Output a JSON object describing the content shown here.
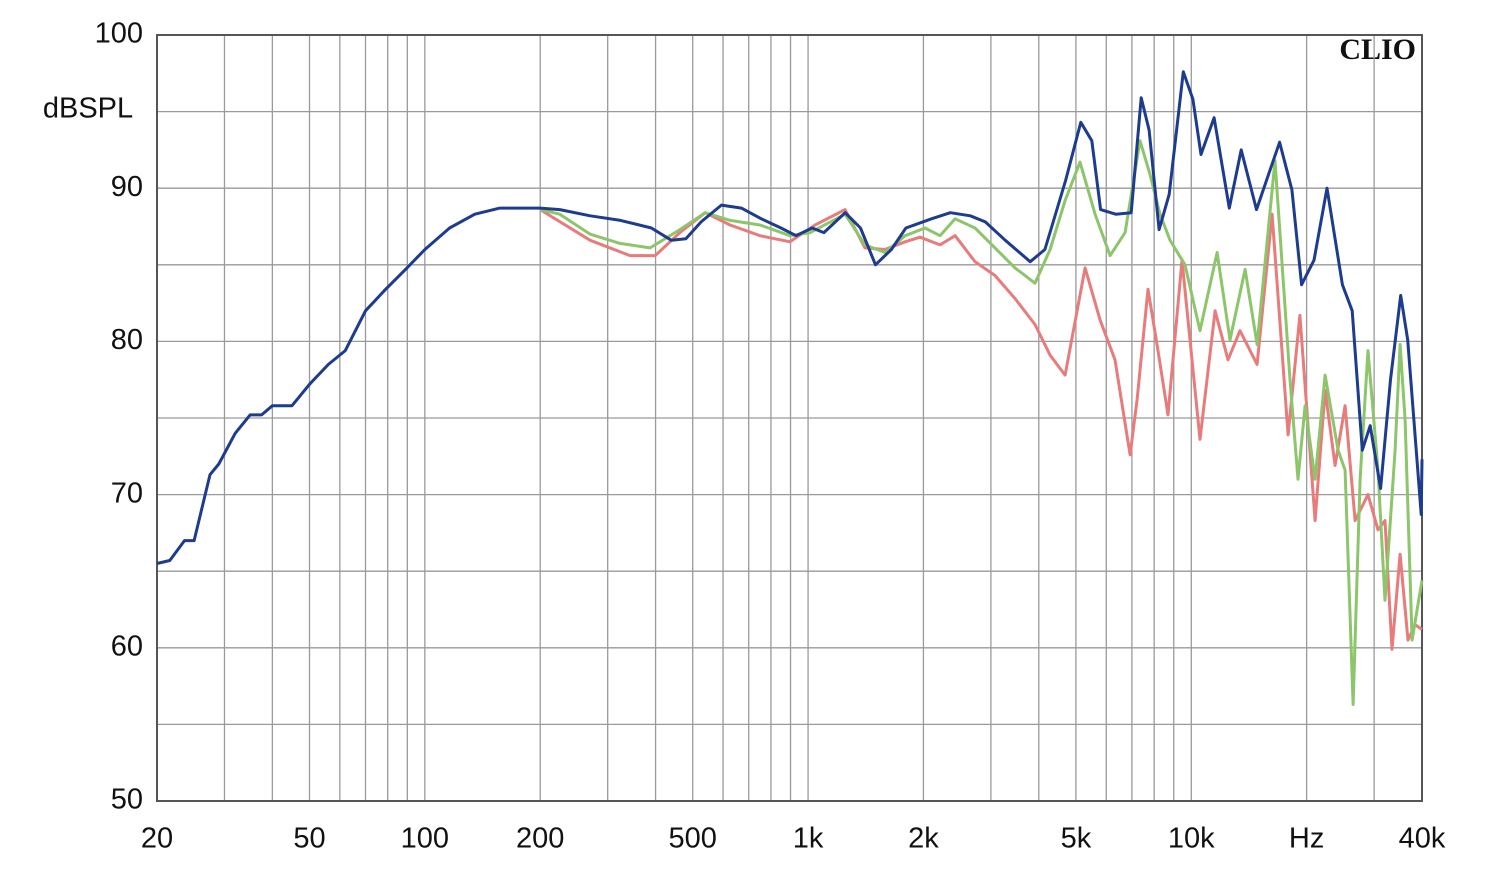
{
  "chart_data": {
    "type": "line",
    "y_label": "dBSPL",
    "annotation": "CLIO",
    "log_x": true,
    "grid": true,
    "xlim": [
      20,
      40000
    ],
    "ylim": [
      50,
      100
    ],
    "xticks": [
      20,
      50,
      100,
      200,
      500,
      {
        "value": 1000,
        "label": "1k"
      },
      {
        "value": 2000,
        "label": "2k"
      },
      {
        "value": 5000,
        "label": "5k"
      },
      {
        "value": 10000,
        "label": "10k"
      },
      {
        "value": 20000,
        "label": "Hz"
      },
      {
        "value": 40000,
        "label": "40k"
      }
    ],
    "xminorticks": [
      30,
      40,
      60,
      70,
      80,
      90,
      300,
      400,
      600,
      700,
      800,
      900,
      3000,
      4000,
      6000,
      7000,
      8000,
      9000,
      30000
    ],
    "yticks": [
      50,
      60,
      70,
      80,
      90,
      100
    ],
    "yminorticks": [
      55,
      65,
      75,
      85,
      95
    ],
    "series": [
      {
        "color": "#e87b7b",
        "x": [
          200,
          270,
          343,
          399,
          463,
          539,
          626,
          749,
          897,
          1043,
          1249,
          1408,
          1588,
          1791,
          1959,
          2210,
          2419,
          2727,
          3075,
          3468,
          3911,
          4281,
          4684,
          5282,
          5781,
          6325,
          6923,
          7220,
          7711,
          8187,
          8692,
          9459,
          10540,
          11540,
          12470,
          13400,
          14850,
          16250,
          17890,
          19210,
          21040,
          22340,
          23730,
          25200,
          26760,
          28920,
          30710,
          32030,
          33410,
          35060,
          36780,
          38370,
          40000
        ],
        "values": [
          88.6,
          86.6,
          85.6,
          85.6,
          87.1,
          88.4,
          87.6,
          86.9,
          86.5,
          87.6,
          88.6,
          86.1,
          86,
          86.5,
          86.8,
          86.3,
          86.9,
          85.2,
          84.3,
          82.8,
          81.1,
          79.1,
          77.8,
          84.8,
          81.4,
          78.8,
          72.6,
          76.2,
          83.4,
          79.4,
          75.2,
          85.3,
          73.6,
          82,
          78.8,
          80.7,
          78.5,
          88.3,
          73.9,
          81.7,
          68.3,
          76.8,
          71.9,
          75.8,
          68.3,
          70,
          67.7,
          68.3,
          59.9,
          66.1,
          60.5,
          61.5,
          61.2
        ]
      },
      {
        "color": "#8dc56b",
        "x": [
          200,
          225,
          270,
          323,
          387,
          463,
          539,
          626,
          749,
          897,
          1012,
          1249,
          1408,
          1588,
          1791,
          2019,
          2210,
          2419,
          2727,
          3075,
          3468,
          3911,
          4281,
          4684,
          5125,
          5609,
          6138,
          6718,
          7350,
          7803,
          8286,
          8804,
          9630,
          10540,
          11680,
          12620,
          13820,
          14850,
          16540,
          18100,
          18990,
          19810,
          21040,
          22340,
          24160,
          25200,
          26440,
          27570,
          28920,
          30710,
          32030,
          34020,
          35060,
          36130,
          37680,
          40000
        ],
        "values": [
          88.6,
          88.3,
          87,
          86.4,
          86.1,
          87.3,
          88.4,
          87.9,
          87.6,
          86.9,
          87.1,
          88.3,
          86.3,
          85.8,
          86.9,
          87.4,
          86.9,
          88,
          87.4,
          86.1,
          84.8,
          83.8,
          86,
          89.2,
          91.7,
          88.3,
          85.6,
          87.1,
          93.1,
          90.9,
          88.3,
          86.6,
          85,
          80.7,
          85.8,
          80.1,
          84.7,
          79.8,
          91.8,
          77.5,
          71,
          75.8,
          71,
          77.8,
          72.9,
          71.6,
          56.3,
          71,
          79.4,
          71.6,
          63.1,
          72.9,
          79.8,
          74.9,
          60.5,
          64.4
        ]
      },
      {
        "color": "#1e3c8e",
        "x": [
          20,
          21.6,
          23.6,
          25,
          27.5,
          29,
          32,
          35,
          37.5,
          40,
          45,
          50,
          56,
          62,
          70,
          79,
          89,
          100,
          116,
          135,
          157,
          200,
          225,
          270,
          324,
          390,
          440,
          480,
          526,
          594,
          670,
          755,
          850,
          930,
          1025,
          1100,
          1250,
          1370,
          1500,
          1650,
          1800,
          2100,
          2350,
          2650,
          2900,
          3270,
          3800,
          4150,
          4700,
          5150,
          5500,
          5800,
          6350,
          6970,
          7400,
          7760,
          8240,
          8760,
          9530,
          10100,
          10600,
          11470,
          12570,
          13500,
          14800,
          17000,
          18300,
          19400,
          20900,
          22600,
          24800,
          26300,
          27950,
          29300,
          31200,
          33100,
          35200,
          36700,
          39800,
          40000
        ],
        "values": [
          65.5,
          65.7,
          67,
          67,
          71.3,
          72,
          74,
          75.2,
          75.2,
          75.8,
          75.8,
          77.2,
          78.5,
          79.4,
          82,
          83.4,
          84.7,
          86,
          87.4,
          88.3,
          88.7,
          88.7,
          88.6,
          88.2,
          87.9,
          87.4,
          86.6,
          86.7,
          87.8,
          88.9,
          88.7,
          88,
          87.4,
          86.9,
          87.4,
          87.1,
          88.4,
          87.4,
          85,
          86,
          87.4,
          88,
          88.4,
          88.2,
          87.8,
          86.6,
          85.2,
          86,
          90.5,
          94.3,
          93.1,
          88.6,
          88.3,
          88.4,
          95.9,
          93.8,
          87.3,
          89.6,
          97.6,
          95.8,
          92.2,
          94.6,
          88.7,
          92.5,
          88.6,
          93,
          89.9,
          83.7,
          85.3,
          90,
          83.7,
          82,
          72.9,
          74.5,
          70.4,
          77.5,
          83,
          80.1,
          68.7,
          72.3
        ]
      }
    ]
  }
}
